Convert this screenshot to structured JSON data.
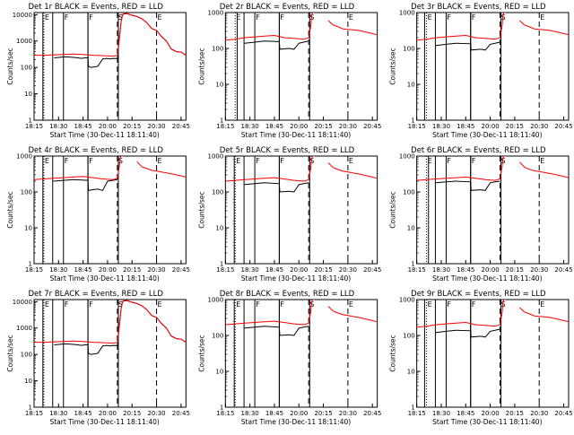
{
  "colors": {
    "events": "#000000",
    "lld": "#ff0000",
    "background": "#ffffff"
  },
  "common": {
    "ylabel": "Counts/sec",
    "xlabel": "Start Time (30-Dec-11 18:11:40)",
    "x_tick_labels": [
      "18:15",
      "18:30",
      "18:45",
      "20:00",
      "20:15",
      "20:30",
      "20:45"
    ],
    "y_tick_labels": [
      "1",
      "10",
      "100",
      "1000",
      "10000"
    ],
    "flag_labels": {
      "e": "E",
      "f": "F",
      "s": "S"
    }
  },
  "chart_data": [
    {
      "type": "line",
      "title": "Det 1r BLACK = Events, RED = LLD",
      "xlim": [
        0,
        155
      ],
      "ylim": [
        1,
        12000
      ],
      "black_breaks": [
        9,
        19,
        55,
        86
      ],
      "series": [
        {
          "name": "Events",
          "color": "#000000",
          "x": [
            0,
            20,
            20.5,
            30,
            35,
            40,
            45,
            48,
            52,
            55,
            55.5,
            58,
            62,
            65,
            70,
            75,
            78,
            80,
            85,
            87,
            89,
            90,
            91,
            93,
            95,
            100,
            105,
            110,
            115,
            120,
            125,
            130,
            135,
            140,
            145,
            150,
            155
          ],
          "y": [
            null,
            null,
            230,
            250,
            250,
            240,
            230,
            220,
            230,
            230,
            110,
            100,
            105,
            110,
            210,
            220,
            210,
            220,
            215,
            1200,
            6000,
            9000,
            10500,
            11000,
            10800,
            9500,
            8500,
            7000,
            5000,
            3000,
            2500,
            1500,
            1000,
            500,
            400,
            380,
            290
          ]
        },
        {
          "name": "LLD",
          "color": "#ff0000",
          "x": [
            0,
            10,
            20,
            30,
            40,
            50,
            60,
            70,
            80,
            85,
            87,
            89,
            90,
            91,
            93,
            95,
            100,
            105,
            110,
            115,
            120,
            125,
            130,
            135,
            140,
            145,
            150,
            155
          ],
          "y": [
            290,
            290,
            300,
            310,
            320,
            310,
            290,
            280,
            270,
            280,
            1200,
            6000,
            9000,
            10500,
            11000,
            10800,
            9500,
            8500,
            7000,
            5000,
            3000,
            2500,
            1500,
            1000,
            500,
            400,
            380,
            290
          ]
        }
      ]
    },
    {
      "type": "line",
      "title": "Det 2r BLACK = Events, RED = LLD",
      "xlim": [
        0,
        155
      ],
      "ylim": [
        1,
        1000
      ],
      "black_breaks": [
        12,
        19,
        55,
        86
      ],
      "series": [
        {
          "name": "Events",
          "color": "#000000",
          "x": [
            19.5,
            30,
            40,
            55,
            55.5,
            65,
            70,
            75,
            80,
            85
          ],
          "y": [
            140,
            150,
            160,
            155,
            95,
            100,
            95,
            140,
            150,
            160
          ]
        },
        {
          "name": "LLD",
          "color": "#ff0000",
          "x": [
            0,
            10,
            20,
            30,
            40,
            50,
            60,
            70,
            80,
            85,
            87,
            88,
            89,
            90,
            91,
            100,
            102,
            105,
            110,
            115,
            120,
            125,
            130,
            135,
            140,
            145,
            150,
            155
          ],
          "y": [
            170,
            180,
            200,
            210,
            220,
            230,
            200,
            190,
            180,
            200,
            400,
            800,
            1000,
            1000,
            1000,
            null,
            null,
            600,
            450,
            400,
            350,
            340,
            330,
            320,
            300,
            280,
            260,
            240
          ]
        }
      ]
    },
    {
      "type": "line",
      "title": "Det 3r BLACK = Events, RED = LLD",
      "xlim": [
        0,
        155
      ],
      "ylim": [
        1,
        1000
      ],
      "black_breaks": [
        8,
        19,
        55,
        86
      ],
      "series": [
        {
          "name": "Events",
          "color": "#000000",
          "x": [
            19.5,
            30,
            40,
            55,
            55.5,
            65,
            70,
            75,
            80,
            85
          ],
          "y": [
            120,
            130,
            140,
            135,
            90,
            95,
            90,
            130,
            140,
            150
          ]
        },
        {
          "name": "LLD",
          "color": "#ff0000",
          "x": [
            0,
            10,
            20,
            30,
            40,
            50,
            60,
            70,
            80,
            85,
            87,
            88,
            89,
            90,
            91,
            100,
            102,
            105,
            110,
            115,
            120,
            125,
            130,
            135,
            140,
            145,
            150,
            155
          ],
          "y": [
            170,
            180,
            200,
            210,
            220,
            230,
            200,
            190,
            180,
            200,
            400,
            800,
            1000,
            1000,
            1000,
            null,
            null,
            600,
            450,
            400,
            350,
            340,
            330,
            320,
            300,
            280,
            260,
            240
          ]
        }
      ]
    },
    {
      "type": "line",
      "title": "Det 4r BLACK = Events, RED = LLD",
      "xlim": [
        0,
        155
      ],
      "ylim": [
        1,
        1000
      ],
      "black_breaks": [
        9,
        19,
        55,
        86
      ],
      "series": [
        {
          "name": "Events",
          "color": "#000000",
          "x": [
            19.5,
            30,
            40,
            55,
            55.5,
            65,
            70,
            75,
            80,
            85
          ],
          "y": [
            200,
            210,
            220,
            210,
            110,
            120,
            110,
            200,
            210,
            220
          ]
        },
        {
          "name": "LLD",
          "color": "#ff0000",
          "x": [
            0,
            10,
            20,
            30,
            40,
            50,
            60,
            70,
            80,
            85,
            87,
            88,
            89,
            90,
            91,
            100,
            102,
            105,
            110,
            115,
            120,
            125,
            130,
            135,
            140,
            145,
            150,
            155
          ],
          "y": [
            220,
            230,
            240,
            250,
            260,
            270,
            250,
            230,
            220,
            240,
            500,
            900,
            1000,
            1000,
            1000,
            null,
            null,
            700,
            500,
            450,
            400,
            380,
            360,
            340,
            320,
            300,
            280,
            260
          ]
        }
      ]
    },
    {
      "type": "line",
      "title": "Det 5r BLACK = Events, RED = LLD",
      "xlim": [
        0,
        155
      ],
      "ylim": [
        1,
        1000
      ],
      "black_breaks": [
        9,
        19,
        55,
        86
      ],
      "series": [
        {
          "name": "Events",
          "color": "#000000",
          "x": [
            19.5,
            30,
            40,
            55,
            55.5,
            65,
            70,
            75,
            80,
            85
          ],
          "y": [
            160,
            170,
            180,
            170,
            100,
            105,
            100,
            160,
            170,
            180
          ]
        },
        {
          "name": "LLD",
          "color": "#ff0000",
          "x": [
            0,
            10,
            20,
            30,
            40,
            50,
            60,
            70,
            80,
            85,
            87,
            88,
            89,
            90,
            91,
            100,
            102,
            105,
            110,
            115,
            120,
            125,
            130,
            135,
            140,
            145,
            150,
            155
          ],
          "y": [
            200,
            210,
            220,
            230,
            240,
            250,
            230,
            210,
            200,
            220,
            450,
            850,
            1000,
            1000,
            1000,
            null,
            null,
            650,
            480,
            420,
            380,
            360,
            340,
            320,
            300,
            280,
            260,
            240
          ]
        }
      ]
    },
    {
      "type": "line",
      "title": "Det 6r BLACK = Events, RED = LLD",
      "xlim": [
        0,
        155
      ],
      "ylim": [
        1,
        1000
      ],
      "black_breaks": [
        12,
        19,
        55,
        86
      ],
      "series": [
        {
          "name": "Events",
          "color": "#000000",
          "x": [
            19.5,
            30,
            40,
            55,
            55.5,
            65,
            70,
            75,
            80,
            85
          ],
          "y": [
            180,
            190,
            200,
            190,
            110,
            115,
            110,
            180,
            190,
            200
          ]
        },
        {
          "name": "LLD",
          "color": "#ff0000",
          "x": [
            0,
            10,
            20,
            30,
            40,
            50,
            60,
            70,
            80,
            85,
            87,
            88,
            89,
            90,
            91,
            100,
            102,
            105,
            110,
            115,
            120,
            125,
            130,
            135,
            140,
            145,
            150,
            155
          ],
          "y": [
            210,
            220,
            230,
            240,
            250,
            260,
            240,
            220,
            210,
            230,
            480,
            880,
            1000,
            1000,
            1000,
            null,
            null,
            680,
            490,
            430,
            390,
            370,
            350,
            330,
            310,
            290,
            270,
            250
          ]
        }
      ]
    },
    {
      "type": "line",
      "title": "Det 7r BLACK = Events, RED = LLD",
      "xlim": [
        0,
        155
      ],
      "ylim": [
        1,
        12000
      ],
      "black_breaks": [
        9,
        19,
        55,
        86
      ],
      "series": [
        {
          "name": "Events",
          "color": "#000000",
          "x": [
            0,
            20,
            20.5,
            30,
            35,
            40,
            45,
            48,
            52,
            55,
            55.5,
            58,
            62,
            65,
            70,
            75,
            78,
            80,
            85,
            87,
            89,
            90,
            91,
            93,
            95,
            100,
            105,
            110,
            115,
            120,
            125,
            130,
            135,
            140,
            145,
            150,
            155
          ],
          "y": [
            null,
            null,
            230,
            250,
            250,
            240,
            230,
            220,
            230,
            230,
            110,
            100,
            105,
            110,
            210,
            220,
            210,
            220,
            215,
            1200,
            6000,
            9000,
            10500,
            11000,
            10800,
            9500,
            8500,
            7000,
            5000,
            3000,
            2500,
            1500,
            1000,
            500,
            400,
            380,
            290
          ]
        },
        {
          "name": "LLD",
          "color": "#ff0000",
          "x": [
            0,
            10,
            20,
            30,
            40,
            50,
            60,
            70,
            80,
            85,
            87,
            89,
            90,
            91,
            93,
            95,
            100,
            105,
            110,
            115,
            120,
            125,
            130,
            135,
            140,
            145,
            150,
            155
          ],
          "y": [
            290,
            290,
            300,
            310,
            320,
            310,
            290,
            280,
            270,
            280,
            1200,
            6000,
            9000,
            10500,
            11000,
            10800,
            9500,
            8500,
            7000,
            5000,
            3000,
            2500,
            1500,
            1000,
            500,
            400,
            380,
            290
          ]
        }
      ]
    },
    {
      "type": "line",
      "title": "Det 8r BLACK = Events, RED = LLD",
      "xlim": [
        0,
        155
      ],
      "ylim": [
        1,
        1000
      ],
      "black_breaks": [
        9,
        19,
        55,
        86
      ],
      "series": [
        {
          "name": "Events",
          "color": "#000000",
          "x": [
            19.5,
            30,
            40,
            55,
            55.5,
            65,
            70,
            75,
            80,
            85
          ],
          "y": [
            160,
            170,
            180,
            170,
            100,
            105,
            100,
            160,
            170,
            180
          ]
        },
        {
          "name": "LLD",
          "color": "#ff0000",
          "x": [
            0,
            10,
            20,
            30,
            40,
            50,
            60,
            70,
            80,
            85,
            87,
            88,
            89,
            90,
            91,
            100,
            102,
            105,
            110,
            115,
            120,
            125,
            130,
            135,
            140,
            145,
            150,
            155
          ],
          "y": [
            200,
            210,
            220,
            230,
            240,
            250,
            230,
            210,
            200,
            220,
            450,
            850,
            1000,
            1000,
            1000,
            null,
            null,
            650,
            480,
            420,
            380,
            360,
            340,
            320,
            300,
            280,
            260,
            240
          ]
        }
      ]
    },
    {
      "type": "line",
      "title": "Det 9r BLACK = Events, RED = LLD",
      "xlim": [
        0,
        155
      ],
      "ylim": [
        1,
        1000
      ],
      "black_breaks": [
        8,
        19,
        55,
        86
      ],
      "series": [
        {
          "name": "Events",
          "color": "#000000",
          "x": [
            19.5,
            30,
            40,
            55,
            55.5,
            65,
            70,
            75,
            80,
            85
          ],
          "y": [
            120,
            130,
            140,
            135,
            90,
            95,
            90,
            130,
            140,
            150
          ]
        },
        {
          "name": "LLD",
          "color": "#ff0000",
          "x": [
            0,
            10,
            20,
            30,
            40,
            50,
            60,
            70,
            80,
            85,
            87,
            88,
            89,
            90,
            91,
            100,
            102,
            105,
            110,
            115,
            120,
            125,
            130,
            135,
            140,
            145,
            150,
            155
          ],
          "y": [
            170,
            180,
            200,
            210,
            220,
            230,
            200,
            190,
            180,
            200,
            400,
            800,
            1000,
            1000,
            1000,
            null,
            null,
            600,
            450,
            400,
            350,
            340,
            330,
            320,
            300,
            280,
            260,
            240
          ]
        }
      ]
    }
  ],
  "shared_flag_lines": [
    {
      "x": 10,
      "label": "E",
      "dash": "dot"
    },
    {
      "x": 30,
      "label": "F",
      "dash": "solid"
    },
    {
      "x": 55,
      "label": "F",
      "dash": "solid"
    },
    {
      "x": 85,
      "label": "S",
      "dash": "dash"
    },
    {
      "x": 125,
      "label": "E",
      "dash": "dash"
    }
  ]
}
